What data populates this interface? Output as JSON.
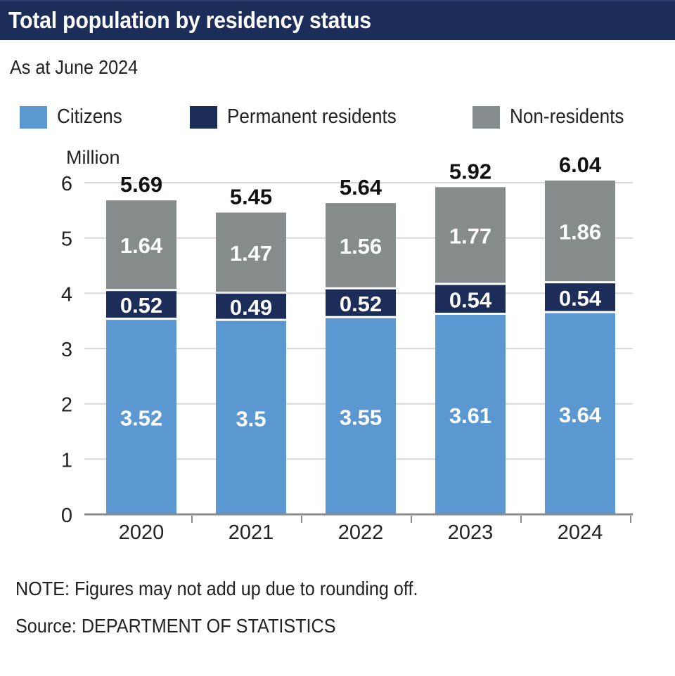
{
  "header": {
    "title": "Total population by residency status"
  },
  "subtitle": "As at June 2024",
  "legend": [
    {
      "label": "Citizens",
      "color": "#5b97d1"
    },
    {
      "label": "Permanent residents",
      "color": "#1c2d5a"
    },
    {
      "label": "Non-residents",
      "color": "#868c8c"
    }
  ],
  "footer": {
    "note": "NOTE: Figures may not add up due to rounding off.",
    "source": "Source: DEPARTMENT OF STATISTICS"
  },
  "chart_data": {
    "type": "bar",
    "stacked": true,
    "title": "Total population by residency status",
    "subtitle": "As at June 2024",
    "ylabel": "Million",
    "xlabel": "",
    "ylim": [
      0,
      6
    ],
    "yticks": [
      0,
      1,
      2,
      3,
      4,
      5,
      6
    ],
    "grid": true,
    "legend_position": "top",
    "categories": [
      "2020",
      "2021",
      "2022",
      "2023",
      "2024"
    ],
    "series": [
      {
        "name": "Citizens",
        "color": "#5b97d1",
        "label_color": "#ffffff",
        "values": [
          3.52,
          3.5,
          3.55,
          3.61,
          3.64
        ],
        "labels": [
          "3.52",
          "3.5",
          "3.55",
          "3.61",
          "3.64"
        ]
      },
      {
        "name": "Permanent residents",
        "color": "#1c2d5a",
        "label_color": "#ffffff",
        "values": [
          0.52,
          0.49,
          0.52,
          0.54,
          0.54
        ],
        "labels": [
          "0.52",
          "0.49",
          "0.52",
          "0.54",
          "0.54"
        ]
      },
      {
        "name": "Non-residents",
        "color": "#868c8c",
        "label_color": "#ffffff",
        "values": [
          1.64,
          1.47,
          1.56,
          1.77,
          1.86
        ],
        "labels": [
          "1.64",
          "1.47",
          "1.56",
          "1.77",
          "1.86"
        ]
      }
    ],
    "totals": [
      5.69,
      5.45,
      5.64,
      5.92,
      6.04
    ],
    "total_labels": [
      "5.69",
      "5.45",
      "5.64",
      "5.92",
      "6.04"
    ],
    "notes": [
      "Figures may not add up due to rounding off."
    ]
  }
}
